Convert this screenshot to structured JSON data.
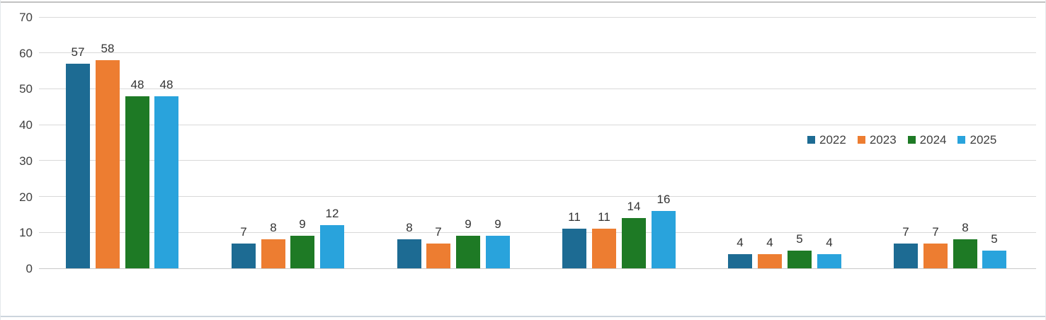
{
  "chart_data": {
    "type": "bar",
    "title": "",
    "xlabel": "",
    "ylabel": "",
    "categories": [
      "",
      "",
      "",
      "",
      "",
      ""
    ],
    "series": [
      {
        "name": "2022",
        "color": "#1D6B93",
        "values": [
          57,
          7,
          8,
          11,
          4,
          7
        ]
      },
      {
        "name": "2023",
        "color": "#ED7D31",
        "values": [
          58,
          8,
          7,
          11,
          4,
          7
        ]
      },
      {
        "name": "2024",
        "color": "#1E7A25",
        "values": [
          48,
          9,
          9,
          14,
          5,
          8
        ]
      },
      {
        "name": "2025",
        "color": "#29A3DC",
        "values": [
          48,
          12,
          9,
          16,
          4,
          5
        ]
      }
    ],
    "y_ticks": [
      0,
      10,
      20,
      30,
      40,
      50,
      60,
      70
    ],
    "ylim": [
      0,
      70
    ],
    "grid": true,
    "value_labels_shown": true,
    "x_axis_labels_shown": false,
    "legend_position": "inside-right-middle",
    "legend_entries": [
      "2022",
      "2023",
      "2024",
      "2025"
    ],
    "colors": {
      "gridline": "#d9d9d9",
      "tick_text": "#3f3f3f",
      "value_label_text": "#333333",
      "background": "#ffffff"
    }
  }
}
